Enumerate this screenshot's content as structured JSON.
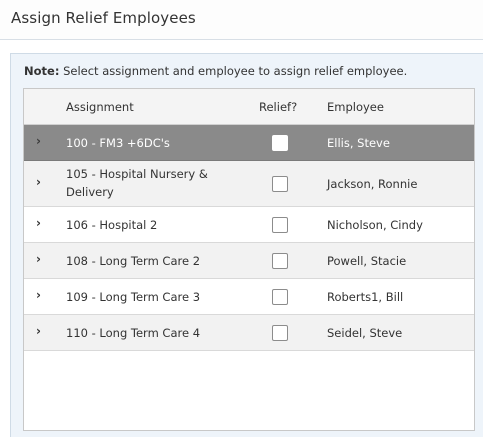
{
  "header": {
    "title": "Assign Relief Employees"
  },
  "note": {
    "label": "Note:",
    "text": "Select assignment and employee to assign relief employee."
  },
  "grid": {
    "columns": {
      "assignment": "Assignment",
      "relief": "Relief?",
      "employee": "Employee"
    },
    "rows": [
      {
        "assignment": "100 - FM3 +6DC's",
        "assignment2": "",
        "employee": "Ellis, Steve",
        "relief": false
      },
      {
        "assignment": "105 - Hospital Nursery &",
        "assignment2": "Delivery",
        "employee": "Jackson, Ronnie",
        "relief": false
      },
      {
        "assignment": "106 - Hospital 2",
        "assignment2": "",
        "employee": "Nicholson, Cindy",
        "relief": false
      },
      {
        "assignment": "108 - Long Term Care 2",
        "assignment2": "",
        "employee": "Powell, Stacie",
        "relief": false
      },
      {
        "assignment": "109 - Long Term Care 3",
        "assignment2": "",
        "employee": "Roberts1, Bill",
        "relief": false
      },
      {
        "assignment": "110 - Long Term Care 4",
        "assignment2": "",
        "employee": "Seidel, Steve",
        "relief": false
      }
    ],
    "expander_icon": "chevron-right-icon"
  }
}
